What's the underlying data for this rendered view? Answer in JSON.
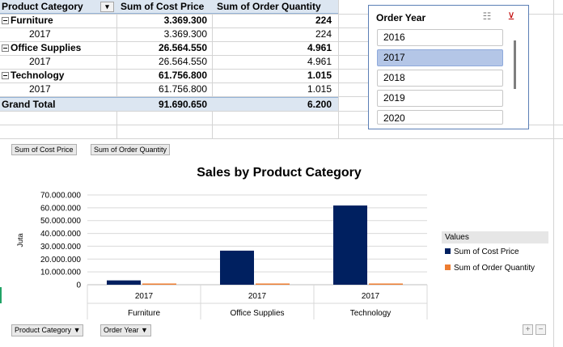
{
  "pivot": {
    "headers": [
      "Product Category",
      "Sum of Cost Price",
      "Sum of Order Quantity"
    ],
    "rows": [
      {
        "label": "Furniture",
        "cost": "3.369.300",
        "qty": "224",
        "level": "group"
      },
      {
        "label": "2017",
        "cost": "3.369.300",
        "qty": "224",
        "level": "item"
      },
      {
        "label": "Office Supplies",
        "cost": "26.564.550",
        "qty": "4.961",
        "level": "group"
      },
      {
        "label": "2017",
        "cost": "26.564.550",
        "qty": "4.961",
        "level": "item"
      },
      {
        "label": "Technology",
        "cost": "61.756.800",
        "qty": "1.015",
        "level": "group"
      },
      {
        "label": "2017",
        "cost": "61.756.800",
        "qty": "1.015",
        "level": "item"
      }
    ],
    "grand_total": {
      "label": "Grand Total",
      "cost": "91.690.650",
      "qty": "6.200"
    }
  },
  "slicer": {
    "title": "Order Year",
    "items": [
      {
        "label": "2016",
        "selected": false
      },
      {
        "label": "2017",
        "selected": true
      },
      {
        "label": "2018",
        "selected": false
      },
      {
        "label": "2019",
        "selected": false
      },
      {
        "label": "2020",
        "selected": false
      }
    ],
    "multiselect_icon": "multi-select-icon",
    "clear_filter_icon": "clear-filter-icon"
  },
  "chart_field_buttons": {
    "values_1": "Sum of Cost Price",
    "values_2": "Sum of Order Quantity",
    "axis_1": "Product Category",
    "axis_2": "Order Year"
  },
  "zoom": {
    "plus": "+",
    "minus": "−"
  },
  "colors": {
    "cost": "#002060",
    "qty": "#ed7d31",
    "accent": "#5b7fb5"
  },
  "chart_data": {
    "type": "bar",
    "title": "Sales by Product Category",
    "ylabel": "Juta",
    "xlabel": "",
    "categories": [
      {
        "year": "2017",
        "group": "Furniture"
      },
      {
        "year": "2017",
        "group": "Office Supplies"
      },
      {
        "year": "2017",
        "group": "Technology"
      }
    ],
    "series": [
      {
        "name": "Sum of Cost Price",
        "values": [
          3369300,
          26564550,
          61756800
        ]
      },
      {
        "name": "Sum of Order Quantity",
        "values": [
          224,
          4961,
          1015
        ]
      }
    ],
    "yticks": [
      "70.000.000",
      "60.000.000",
      "50.000.000",
      "40.000.000",
      "30.000.000",
      "20.000.000",
      "10.000.000",
      "0"
    ],
    "ylim": [
      0,
      70000000
    ],
    "grid": true,
    "legend_title": "Values",
    "legend_position": "right"
  }
}
